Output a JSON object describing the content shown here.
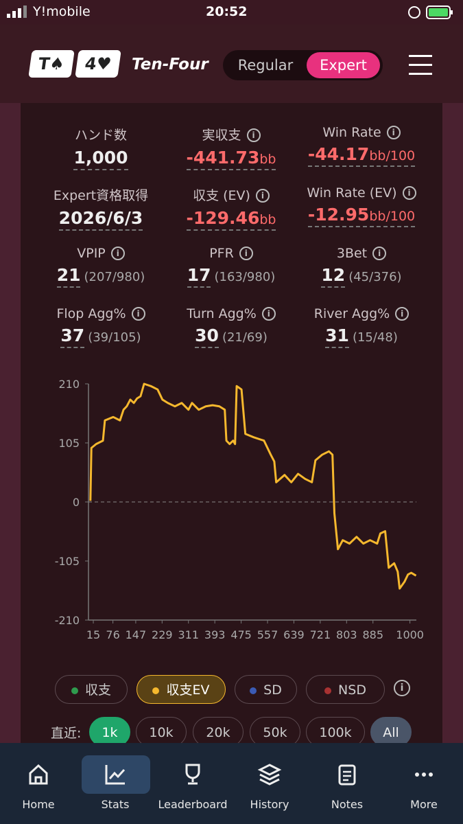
{
  "status": {
    "carrier": "Y!mobile",
    "time": "20:52"
  },
  "header": {
    "logo_left": "T♠",
    "logo_right": "4♥",
    "brand": "Ten-Four",
    "tabs": [
      "Regular",
      "Expert"
    ],
    "active_tab": 1
  },
  "stats": [
    {
      "label": "ハンド数",
      "value": "1,000"
    },
    {
      "label": "実収支",
      "value": "-441.73",
      "unit": "bb",
      "info": true,
      "color": "#ff6b6b"
    },
    {
      "label": "Win Rate",
      "value": "-44.17",
      "unit": "bb/100",
      "info": true,
      "color": "#ff6b6b"
    },
    {
      "label": "Expert資格取得",
      "value": "2026/6/3"
    },
    {
      "label": "収支 (EV)",
      "value": "-129.46",
      "unit": "bb",
      "info": true,
      "color": "#ff6b6b"
    },
    {
      "label": "Win Rate (EV)",
      "value": "-12.95",
      "unit": "bb/100",
      "info": true,
      "color": "#ff6b6b"
    },
    {
      "label": "VPIP",
      "value": "21",
      "detail": "(207/980)",
      "info": true
    },
    {
      "label": "PFR",
      "value": "17",
      "detail": "(163/980)",
      "info": true
    },
    {
      "label": "3Bet",
      "value": "12",
      "detail": "(45/376)",
      "info": true
    },
    {
      "label": "Flop Agg%",
      "value": "37",
      "detail": "(39/105)",
      "info": true
    },
    {
      "label": "Turn Agg%",
      "value": "30",
      "detail": "(21/69)",
      "info": true
    },
    {
      "label": "River Agg%",
      "value": "31",
      "detail": "(15/48)",
      "info": true
    }
  ],
  "chart_data": {
    "type": "line",
    "x": [
      6,
      9,
      24,
      45,
      51,
      77,
      98,
      109,
      119,
      130,
      141,
      151,
      162,
      173,
      194,
      215,
      230,
      247,
      269,
      290,
      311,
      322,
      343,
      365,
      386,
      407,
      424,
      429,
      439,
      450,
      456,
      461,
      476,
      488,
      514,
      546,
      567,
      578,
      584,
      610,
      631,
      652,
      674,
      695,
      706,
      727,
      748,
      759,
      765,
      776,
      791,
      812,
      834,
      855,
      876,
      898,
      908,
      923,
      934,
      951,
      962,
      968,
      983,
      994,
      1004,
      1019
    ],
    "series": [
      {
        "name": "収支EV",
        "color": "#f5b82e",
        "values": [
          2,
          96,
          103,
          109,
          145,
          151,
          145,
          164,
          170,
          182,
          176,
          184,
          188,
          210,
          206,
          200,
          182,
          176,
          170,
          176,
          164,
          176,
          164,
          170,
          172,
          170,
          164,
          109,
          103,
          109,
          103,
          206,
          200,
          121,
          115,
          109,
          84,
          72,
          35,
          48,
          35,
          50,
          41,
          35,
          74,
          84,
          90,
          84,
          -20,
          -84,
          -68,
          -74,
          -62,
          -74,
          -68,
          -74,
          -56,
          -52,
          -117,
          -109,
          -124,
          -154,
          -142,
          -129,
          -126,
          -131
        ]
      }
    ],
    "xlim": [
      0,
      1020
    ],
    "ylim": [
      -210,
      210
    ],
    "xticks": [
      15,
      76,
      147,
      229,
      311,
      393,
      475,
      557,
      639,
      721,
      803,
      885,
      1000
    ],
    "yticks": [
      -210,
      -105,
      0,
      105,
      210
    ],
    "zero_line": true
  },
  "toggles": [
    {
      "label": "収支",
      "color": "#2f9b4e"
    },
    {
      "label": "SD",
      "color": "#3b5bb5"
    },
    {
      "label": "NSD",
      "color": "#a83232"
    }
  ],
  "range": {
    "label": "直近:",
    "options": [
      "1k",
      "10k",
      "20k",
      "50k",
      "100k",
      "All"
    ],
    "active": 0
  },
  "nav": {
    "items": [
      "Home",
      "Stats",
      "Leaderboard",
      "History",
      "Notes",
      "More"
    ],
    "active": 1
  }
}
